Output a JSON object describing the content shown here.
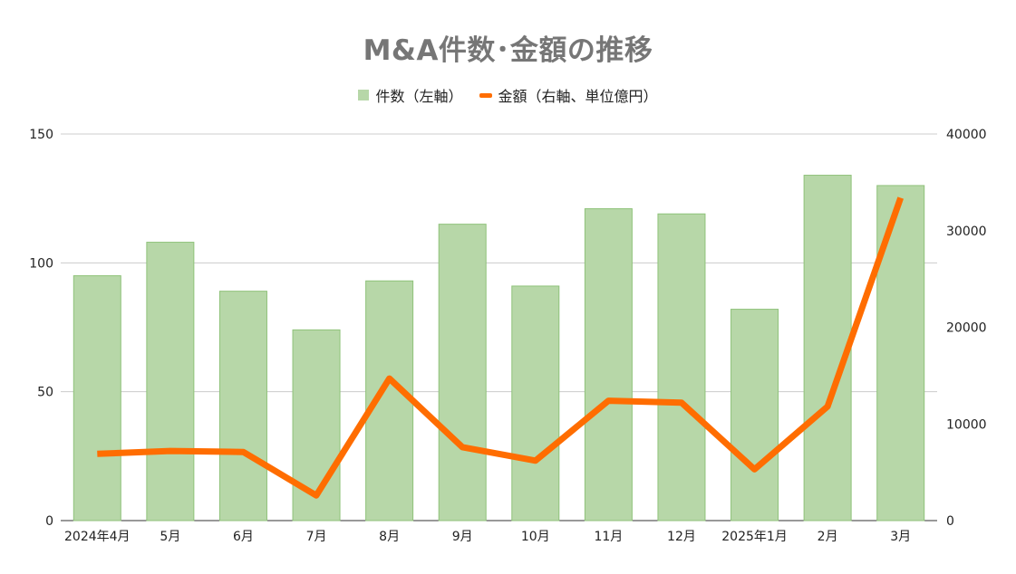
{
  "chart_data": {
    "type": "bar",
    "title": "M&A件数･金額の推移",
    "categories": [
      "2024年4月",
      "5月",
      "6月",
      "7月",
      "8月",
      "9月",
      "10月",
      "11月",
      "12月",
      "2025年1月",
      "2月",
      "3月"
    ],
    "series": [
      {
        "name": "件数（左軸）",
        "type": "bar",
        "axis": "left",
        "color": "#b7d7a8",
        "values": [
          95,
          108,
          89,
          74,
          93,
          115,
          91,
          121,
          119,
          82,
          134,
          130
        ]
      },
      {
        "name": "金額（右軸、単位億円）",
        "type": "line",
        "axis": "right",
        "color": "#ff6d01",
        "values": [
          6900,
          7200,
          7100,
          2600,
          14700,
          7600,
          6200,
          12400,
          12200,
          5300,
          11800,
          33400
        ]
      }
    ],
    "y_left": {
      "min": 0,
      "max": 150,
      "ticks": [
        "0",
        "50",
        "100",
        "150"
      ]
    },
    "y_right": {
      "min": 0,
      "max": 40000,
      "ticks": [
        "0",
        "10000",
        "20000",
        "30000",
        "40000"
      ]
    },
    "grid": true,
    "legend_position": "top-center"
  }
}
